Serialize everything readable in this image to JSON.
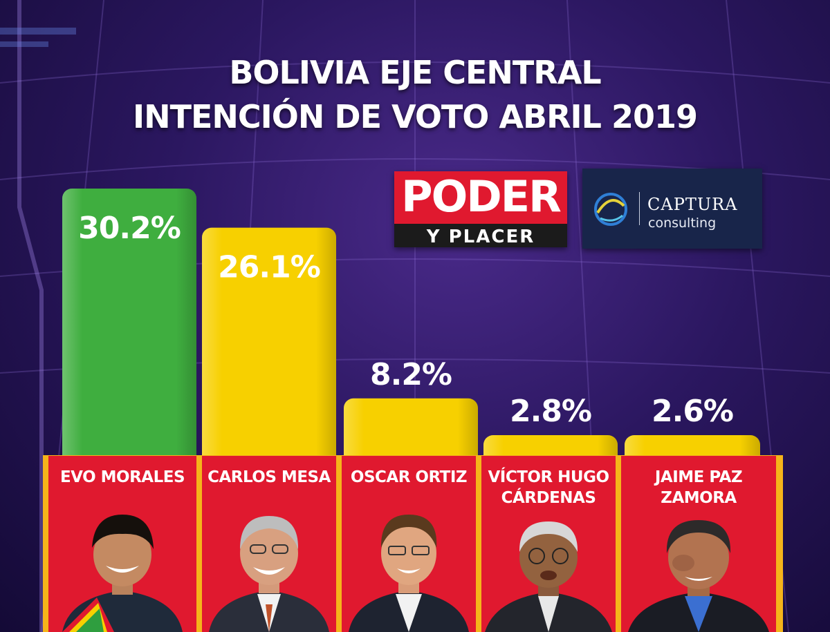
{
  "chart_data": {
    "type": "bar",
    "title": "BOLIVIA EJE CENTRAL",
    "subtitle": "INTENCIÓN DE VOTO ABRIL 2019",
    "categories": [
      "EVO MORALES",
      "CARLOS MESA",
      "OSCAR ORTIZ",
      "VÍCTOR HUGO CÁRDENAS",
      "JAIME PAZ ZAMORA"
    ],
    "category_lines": [
      [
        "EVO MORALES"
      ],
      [
        "CARLOS MESA"
      ],
      [
        "OSCAR ORTIZ"
      ],
      [
        "VÍCTOR HUGO",
        "CÁRDENAS"
      ],
      [
        "JAIME PAZ",
        "ZAMORA"
      ]
    ],
    "values": [
      30.2,
      26.1,
      8.2,
      2.8,
      2.6
    ],
    "value_labels": [
      "30.2%",
      "26.1%",
      "8.2%",
      "2.8%",
      "2.6%"
    ],
    "bar_colors": [
      "#3fae3f",
      "#f7d000",
      "#f7d000",
      "#f7d000",
      "#f7d000"
    ],
    "ylim": [
      0,
      31
    ],
    "xlabel": "",
    "ylabel": "",
    "grid": false,
    "legend": "none"
  },
  "logos": {
    "poder": "PODER",
    "y_placer": "Y PLACER",
    "captura": "CAPTURA",
    "consulting": "consulting"
  },
  "colors": {
    "panel_red": "#e0192f",
    "panel_border": "#f5b41a",
    "background": "#2b1760"
  }
}
